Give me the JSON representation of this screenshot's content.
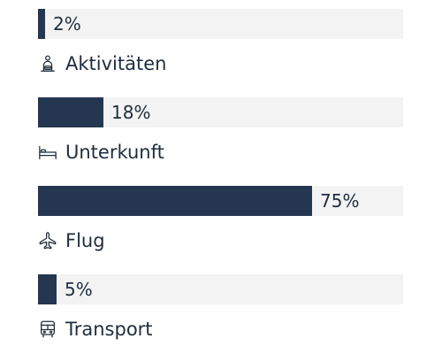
{
  "colors": {
    "bar_fill": "#253750",
    "bar_track": "#f3f3f3",
    "text": "#1f2d3d"
  },
  "items": [
    {
      "label": "Aktivitäten",
      "percent_text": "2%",
      "value": 2,
      "icon": "activities-icon"
    },
    {
      "label": "Unterkunft",
      "percent_text": "18%",
      "value": 18,
      "icon": "bed-icon"
    },
    {
      "label": "Flug",
      "percent_text": "75%",
      "value": 75,
      "icon": "airplane-icon"
    },
    {
      "label": "Transport",
      "percent_text": "5%",
      "value": 5,
      "icon": "bus-icon"
    }
  ]
}
